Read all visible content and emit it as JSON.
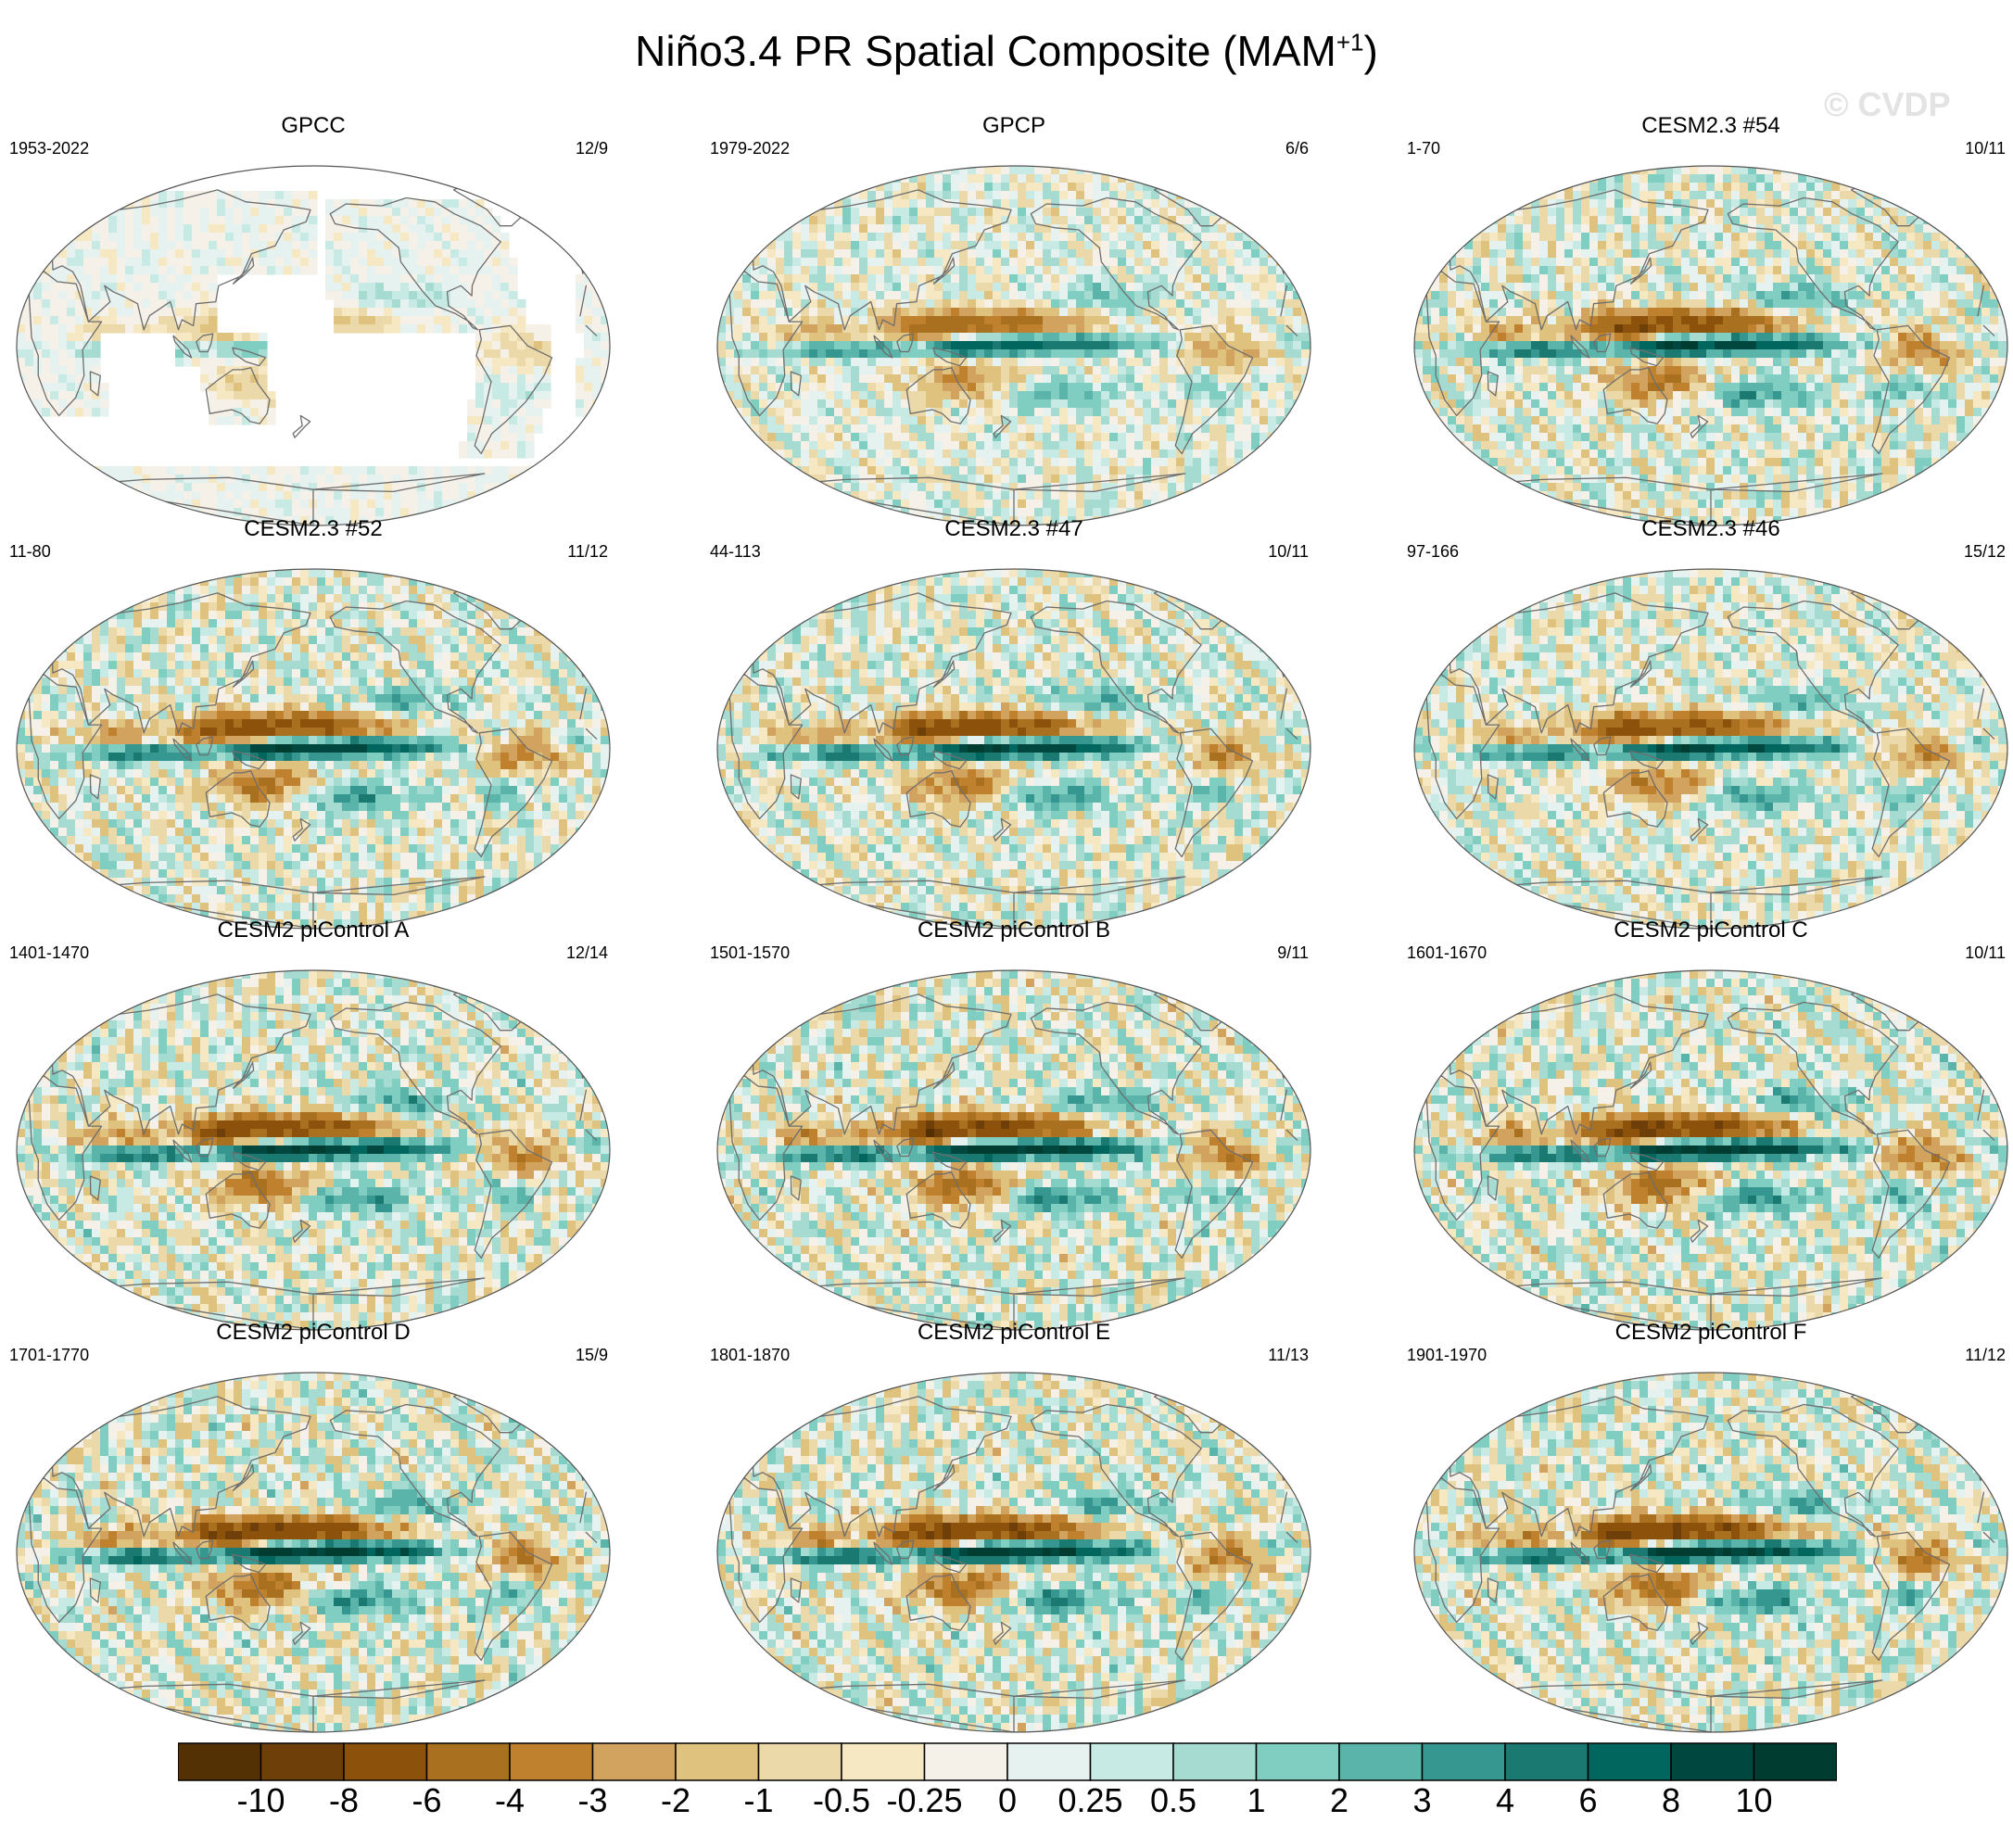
{
  "title": {
    "main": "Niño3.4 PR Spatial Composite (MAM",
    "superscript": "+1",
    "close": ")"
  },
  "watermark": "© CVDP",
  "chart_data": {
    "type": "heatmap",
    "title": "Niño3.4 PR Spatial Composite (MAM+1)",
    "projection": "Robinson (Pacific-centered global maps)",
    "panels": [
      {
        "title": "GPCC",
        "period": "1953-2022",
        "count": "12/9",
        "land_only": true,
        "amp": 0.7
      },
      {
        "title": "GPCP",
        "period": "1979-2022",
        "count": "6/6",
        "land_only": false,
        "amp": 1.0
      },
      {
        "title": "CESM2.3 #54",
        "period": "1-70",
        "count": "10/11",
        "land_only": false,
        "amp": 1.4
      },
      {
        "title": "CESM2.3 #52",
        "period": "11-80",
        "count": "11/12",
        "land_only": false,
        "amp": 1.4
      },
      {
        "title": "CESM2.3 #47",
        "period": "44-113",
        "count": "10/11",
        "land_only": false,
        "amp": 1.4
      },
      {
        "title": "CESM2.3 #46",
        "period": "97-166",
        "count": "15/12",
        "land_only": false,
        "amp": 1.3
      },
      {
        "title": "CESM2 piControl A",
        "period": "1401-1470",
        "count": "12/14",
        "land_only": false,
        "amp": 1.5
      },
      {
        "title": "CESM2 piControl B",
        "period": "1501-1570",
        "count": "9/11",
        "land_only": false,
        "amp": 1.6
      },
      {
        "title": "CESM2 piControl C",
        "period": "1601-1670",
        "count": "10/11",
        "land_only": false,
        "amp": 1.6
      },
      {
        "title": "CESM2 piControl D",
        "period": "1701-1770",
        "count": "15/9",
        "land_only": false,
        "amp": 1.6
      },
      {
        "title": "CESM2 piControl E",
        "period": "1801-1870",
        "count": "11/13",
        "land_only": false,
        "amp": 1.6
      },
      {
        "title": "CESM2 piControl F",
        "period": "1901-1970",
        "count": "11/12",
        "land_only": false,
        "amp": 1.6
      }
    ],
    "colorbar": {
      "levels": [
        "-10",
        "-8",
        "-6",
        "-4",
        "-3",
        "-2",
        "-1",
        "-0.5",
        "-0.25",
        "0",
        "0.25",
        "0.5",
        "1",
        "2",
        "3",
        "4",
        "6",
        "8",
        "10"
      ],
      "level_values": [
        -10,
        -8,
        -6,
        -4,
        -3,
        -2,
        -1,
        -0.5,
        -0.25,
        0,
        0.25,
        0.5,
        1,
        2,
        3,
        4,
        6,
        8,
        10
      ],
      "colors": [
        "#543005",
        "#6f3f09",
        "#8c510a",
        "#a8701f",
        "#bf812d",
        "#d1a35e",
        "#dfc27d",
        "#ecd9a9",
        "#f6e8c3",
        "#f5f1e9",
        "#e6f2f0",
        "#c7eae5",
        "#a6dbd2",
        "#80cdc1",
        "#5ab4a9",
        "#35978f",
        "#1a7a72",
        "#01665e",
        "#00473f",
        "#003c30"
      ]
    }
  }
}
